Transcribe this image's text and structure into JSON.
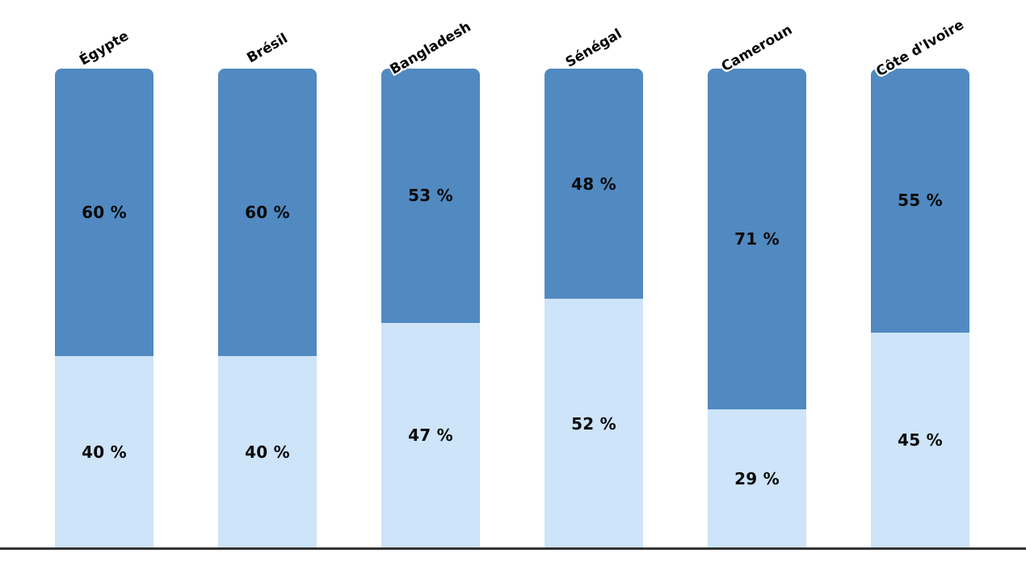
{
  "chart_data": {
    "type": "bar",
    "stacked": true,
    "orientation": "vertical",
    "title": "",
    "xlabel": "",
    "ylabel": "",
    "ylim": [
      0,
      100
    ],
    "grid": false,
    "legend": "none",
    "value_suffix": " %",
    "categories": [
      "Égypte",
      "Brésil",
      "Bangladesh",
      "Sénégal",
      "Cameroun",
      "Côte d'Ivoire"
    ],
    "series": [
      {
        "name": "top",
        "color": "#5189c1",
        "values": [
          60,
          60,
          53,
          48,
          71,
          55
        ]
      },
      {
        "name": "bottom",
        "color": "#cde4f9",
        "values": [
          40,
          40,
          47,
          52,
          29,
          45
        ]
      }
    ],
    "colors": {
      "top_segment": "#5189c1",
      "bottom_segment": "#cde4f9",
      "label_text": "#0a0a0a",
      "axis_line": "#333333",
      "background": "#ffffff"
    }
  }
}
